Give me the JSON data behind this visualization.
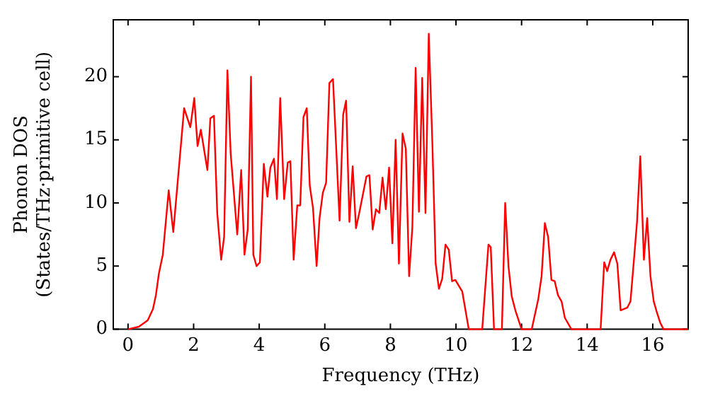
{
  "chart_data": {
    "type": "line",
    "xlabel": "Frequency (THz)",
    "ylabel": "Phonon DOS\n(States/THz·primitive cell)",
    "x": [
      0,
      0.33,
      0.6,
      0.76,
      0.85,
      0.94,
      1.06,
      1.24,
      1.38,
      1.71,
      1.9,
      2.02,
      2.12,
      2.22,
      2.42,
      2.51,
      2.62,
      2.72,
      2.84,
      2.93,
      3.03,
      3.13,
      3.33,
      3.45,
      3.55,
      3.65,
      3.75,
      3.82,
      3.92,
      4.02,
      4.14,
      4.25,
      4.34,
      4.45,
      4.54,
      4.64,
      4.76,
      4.87,
      4.95,
      5.05,
      5.16,
      5.25,
      5.35,
      5.45,
      5.54,
      5.64,
      5.75,
      5.84,
      5.94,
      6.04,
      6.14,
      6.25,
      6.45,
      6.56,
      6.65,
      6.75,
      6.85,
      6.95,
      7.05,
      7.27,
      7.36,
      7.46,
      7.56,
      7.66,
      7.76,
      7.86,
      7.96,
      8.06,
      8.16,
      8.26,
      8.37,
      8.47,
      8.57,
      8.67,
      8.77,
      8.87,
      8.97,
      9.07,
      9.17,
      9.28,
      9.38,
      9.48,
      9.58,
      9.68,
      9.78,
      9.88,
      9.98,
      10.19,
      10.39,
      10.8,
      10.99,
      11.06,
      11.16,
      11.4,
      11.5,
      11.6,
      11.7,
      11.81,
      12.0,
      12.31,
      12.51,
      12.61,
      12.71,
      12.81,
      12.91,
      13.01,
      13.11,
      13.22,
      13.32,
      13.52,
      14.41,
      14.52,
      14.61,
      14.71,
      14.82,
      14.92,
      15.02,
      15.22,
      15.32,
      15.42,
      15.52,
      15.62,
      15.73,
      15.83,
      15.93,
      16.03,
      16.13,
      16.23,
      16.33,
      17.08
    ],
    "series": [
      {
        "color": "#ff0000",
        "values": [
          0,
          0.2,
          0.7,
          1.6,
          2.7,
          4.4,
          5.9,
          11.0,
          7.7,
          17.5,
          16.0,
          18.3,
          14.5,
          15.8,
          12.6,
          16.7,
          16.9,
          9.2,
          5.5,
          7.3,
          20.5,
          13.9,
          7.5,
          12.6,
          5.9,
          7.9,
          20.0,
          5.9,
          5.0,
          5.3,
          13.1,
          10.5,
          12.8,
          13.5,
          10.3,
          18.3,
          10.3,
          13.2,
          13.3,
          5.5,
          9.8,
          9.8,
          16.8,
          17.5,
          11.4,
          9.6,
          5.0,
          8.8,
          10.8,
          11.6,
          19.5,
          19.8,
          8.6,
          17.0,
          18.1,
          8.5,
          12.9,
          8.0,
          9.2,
          12.1,
          12.2,
          7.9,
          9.5,
          9.2,
          12.0,
          9.5,
          12.8,
          6.8,
          15.0,
          5.2,
          15.5,
          14.3,
          4.2,
          8.1,
          20.7,
          9.3,
          19.9,
          9.2,
          23.4,
          14.7,
          5.2,
          3.2,
          4.0,
          6.7,
          6.3,
          3.8,
          3.9,
          3.0,
          0,
          0,
          6.7,
          6.5,
          0,
          0,
          10.0,
          5.0,
          2.6,
          1.5,
          0,
          0,
          2.4,
          4.2,
          8.4,
          7.3,
          3.9,
          3.8,
          2.7,
          2.2,
          0.9,
          0,
          0,
          5.3,
          4.6,
          5.5,
          6.1,
          5.2,
          1.5,
          1.7,
          2.2,
          5.3,
          8.5,
          13.7,
          5.5,
          8.8,
          4.2,
          2.2,
          1.3,
          0.5,
          0,
          0
        ]
      }
    ],
    "xlim": [
      -0.45,
      17.08
    ],
    "ylim": [
      0,
      24.5
    ],
    "xticks": [
      0,
      2,
      4,
      6,
      8,
      10,
      12,
      14,
      16
    ],
    "yticks": [
      0,
      5,
      10,
      15,
      20
    ],
    "grid": false,
    "legend": false
  }
}
